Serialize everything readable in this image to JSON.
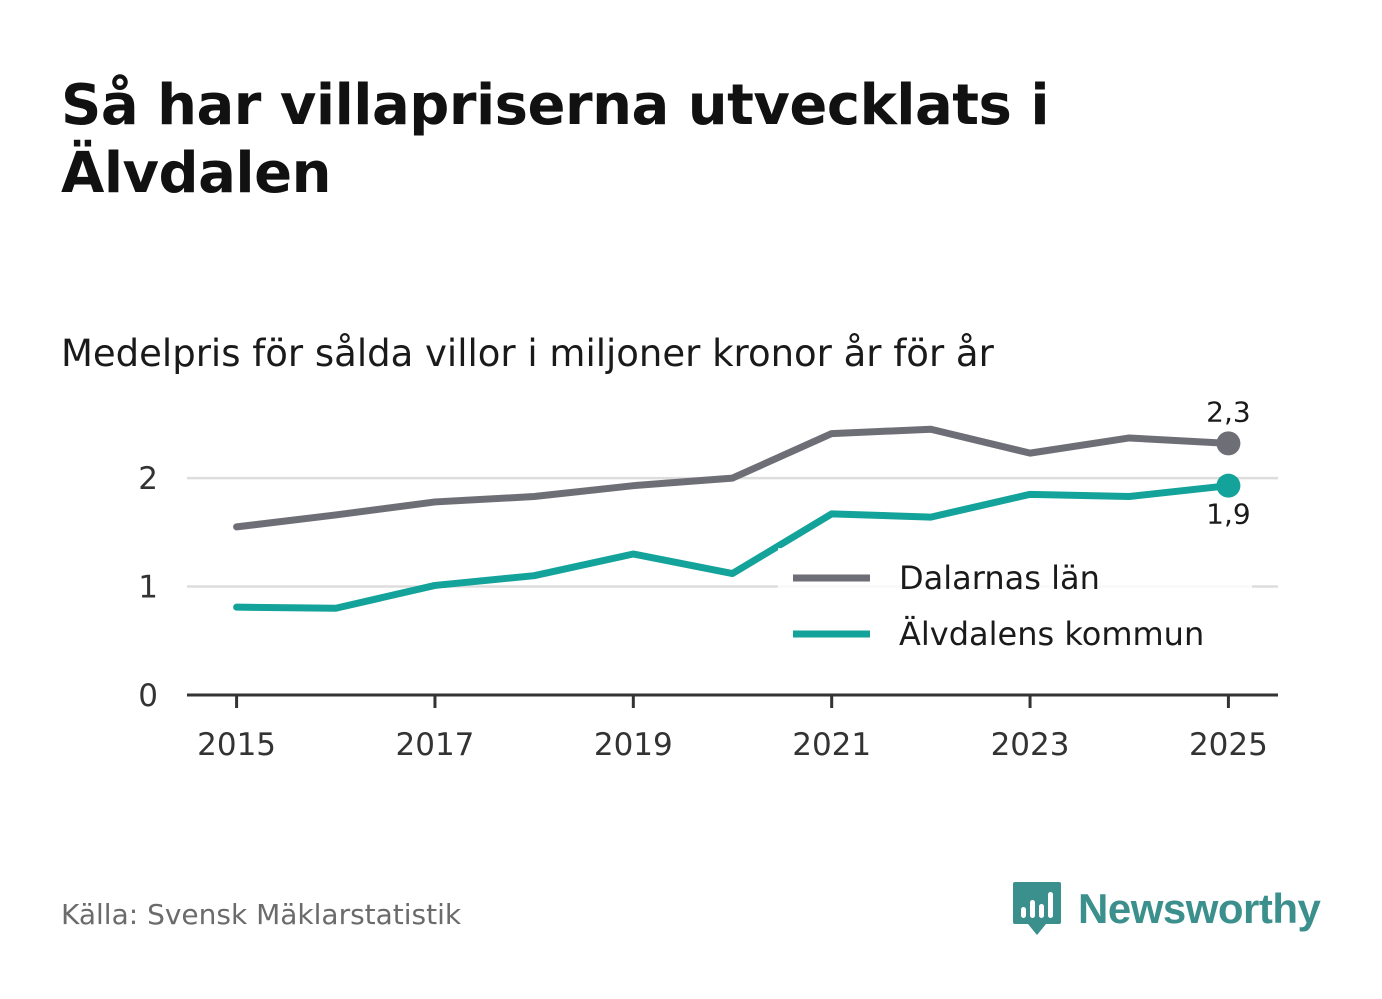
{
  "title": "Så har villapriserna utvecklats i Älvdalen",
  "subtitle": "Medelpris för sålda villor i miljoner kronor år för år",
  "source": "Källa: Svensk Mäklarstatistik",
  "brand": {
    "name": "Newsworthy",
    "icon": "newsworthy-logo-icon"
  },
  "colors": {
    "county": "#6e6e76",
    "municipality": "#14a39a",
    "grid": "#dddddd",
    "axis": "#333333",
    "brand": "#3b8f8c"
  },
  "chart_data": {
    "type": "line",
    "title": "Så har villapriserna utvecklats i Älvdalen",
    "subtitle": "Medelpris för sålda villor i miljoner kronor år för år",
    "xlabel": "",
    "ylabel": "",
    "x": [
      2015,
      2016,
      2017,
      2018,
      2019,
      2020,
      2021,
      2022,
      2023,
      2024,
      2025
    ],
    "xticks": [
      "2015",
      "2017",
      "2019",
      "2021",
      "2023",
      "2025"
    ],
    "xlim": [
      2014.5,
      2025.5
    ],
    "yticks": [
      "0",
      "1",
      "2"
    ],
    "ylim": [
      0,
      2.6
    ],
    "grid": true,
    "legend_position": "bottom-right",
    "series": [
      {
        "name": "Dalarnas län",
        "color": "#6e6e76",
        "values": [
          1.55,
          1.66,
          1.78,
          1.83,
          1.93,
          2.0,
          2.41,
          2.45,
          2.23,
          2.37,
          2.32
        ],
        "end_label": "2,3"
      },
      {
        "name": "Älvdalens kommun",
        "color": "#14a39a",
        "values": [
          0.81,
          0.8,
          1.01,
          1.1,
          1.3,
          1.12,
          1.67,
          1.64,
          1.85,
          1.83,
          1.93
        ],
        "end_label": "1,9"
      }
    ]
  }
}
